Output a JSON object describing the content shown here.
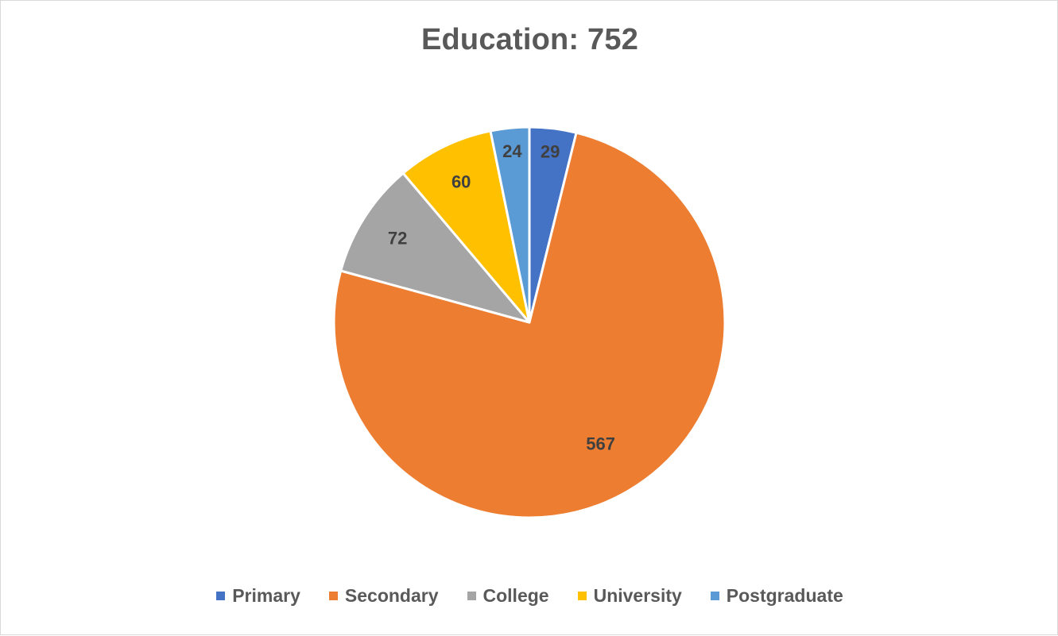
{
  "chart_data": {
    "type": "pie",
    "title": "Education: 752",
    "categories": [
      "Primary",
      "Secondary",
      "College",
      "University",
      "Postgraduate"
    ],
    "values": [
      29,
      567,
      72,
      60,
      24
    ],
    "colors": [
      "#4472c4",
      "#ed7d31",
      "#a5a5a5",
      "#ffc000",
      "#5b9bd5"
    ],
    "data_labels": [
      "29",
      "567",
      "72",
      "60",
      "24"
    ],
    "legend_position": "bottom",
    "start_angle": "12 o'clock",
    "direction": "clockwise"
  }
}
